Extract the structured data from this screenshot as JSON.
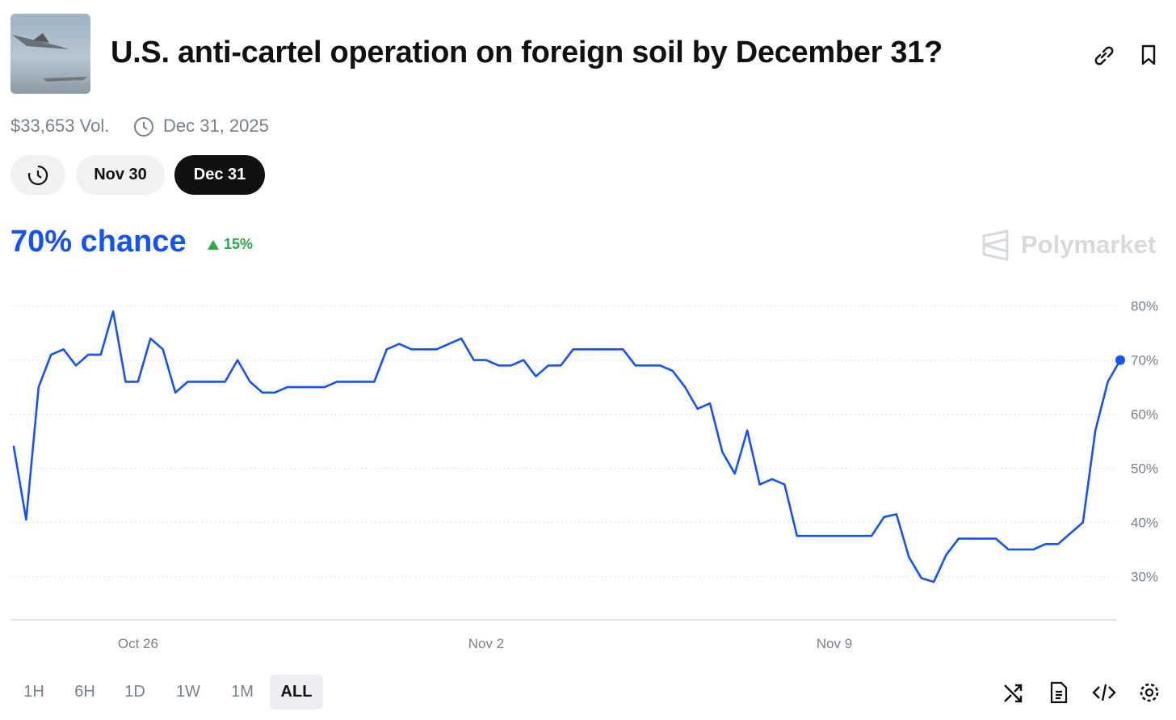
{
  "header": {
    "title": "U.S. anti-cartel operation on foreign soil by December 31?",
    "volume": "$33,653 Vol.",
    "end_date": "Dec 31, 2025"
  },
  "tabs": [
    "Nov 30",
    "Dec 31"
  ],
  "headline": "70% chance",
  "change": "15%",
  "brand": "Polymarket",
  "ranges": [
    "1H",
    "6H",
    "1D",
    "1W",
    "1M",
    "ALL"
  ],
  "chart_data": {
    "type": "line",
    "categories": [
      null,
      null,
      null,
      null,
      null,
      null,
      null,
      null,
      null,
      null,
      "Oct 26",
      null,
      null,
      null,
      null,
      null,
      null,
      null,
      null,
      null,
      null,
      null,
      null,
      null,
      null,
      null,
      null,
      null,
      null,
      null,
      null,
      null,
      null,
      null,
      null,
      null,
      null,
      null,
      "Nov 2",
      null,
      null,
      null,
      null,
      null,
      null,
      null,
      null,
      null,
      null,
      null,
      null,
      null,
      null,
      null,
      null,
      null,
      null,
      null,
      null,
      null,
      null,
      null,
      null,
      null,
      null,
      null,
      "Nov 9",
      null,
      null,
      null,
      null,
      null,
      null,
      null,
      null,
      null,
      null,
      null,
      null,
      null,
      null,
      null,
      null,
      null,
      null,
      null,
      null,
      null,
      null,
      null
    ],
    "series": [
      {
        "color": "#1652f0",
        "values": [
          54,
          40.5,
          65,
          71,
          72,
          69,
          71,
          71,
          79,
          66,
          66,
          74,
          72,
          64,
          66,
          66,
          66,
          66,
          70,
          66,
          64,
          64,
          65,
          65,
          65,
          65,
          66,
          66,
          66,
          66,
          72,
          73,
          72,
          72,
          72,
          73,
          74,
          70,
          70,
          69,
          69,
          70,
          67,
          69,
          69,
          72,
          72,
          72,
          72,
          72,
          69,
          69,
          69,
          68,
          65,
          61,
          62,
          53,
          49,
          57,
          47,
          48,
          47,
          37.5,
          37.5,
          37.5,
          37.5,
          37.5,
          37.5,
          37.5,
          41,
          41.5,
          33.6,
          29.7,
          29,
          34,
          37,
          37,
          37,
          37,
          35,
          35,
          35,
          36,
          36,
          38,
          40,
          57,
          66,
          70
        ]
      }
    ],
    "ylim": [
      22,
      81
    ],
    "yticks": [
      {
        "value": 30,
        "label": "30%"
      },
      {
        "value": 40,
        "label": "40%"
      },
      {
        "value": 50,
        "label": "50%"
      },
      {
        "value": 60,
        "label": "60%"
      },
      {
        "value": 70,
        "label": "70%"
      },
      {
        "value": 80,
        "label": "80%"
      }
    ],
    "grid": true
  }
}
